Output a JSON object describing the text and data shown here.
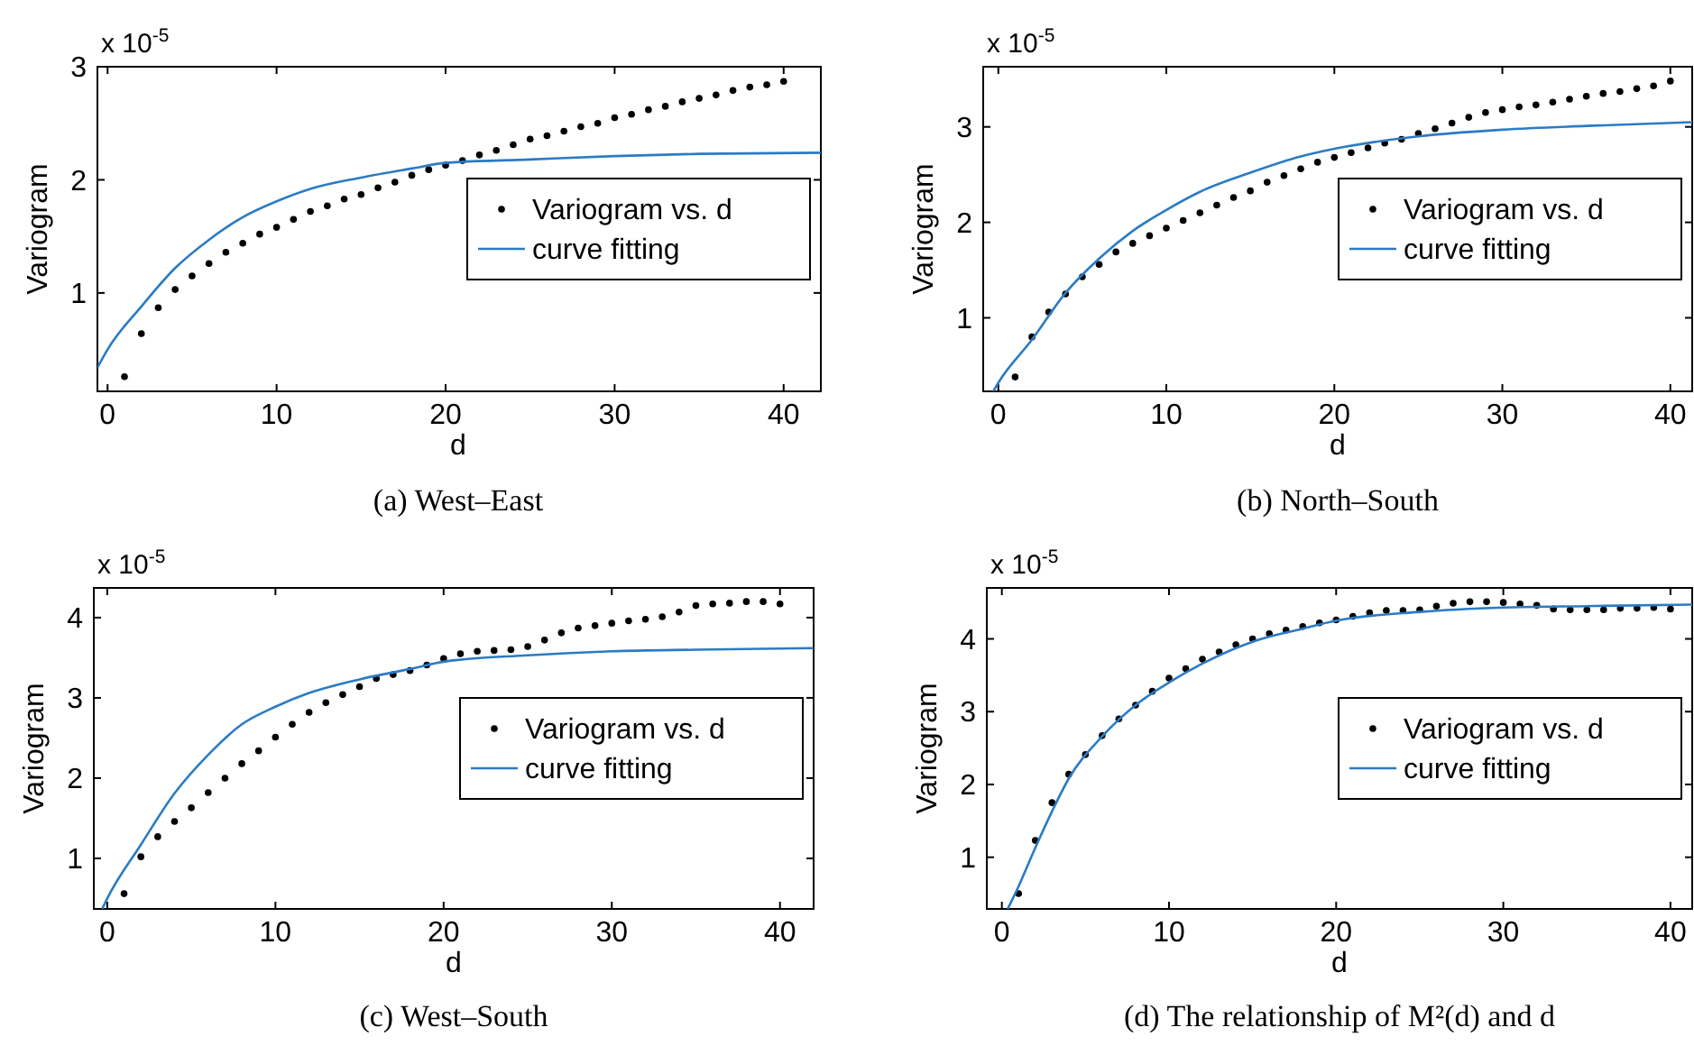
{
  "chart_data": [
    {
      "type": "scatter",
      "title": "(a) West–East",
      "xlabel": "d",
      "ylabel": "Variogram",
      "annotations": [
        "x 10$^{-5}$"
      ],
      "xlim": [
        -0.6,
        42.2
      ],
      "ylim": [
        0.13,
        3
      ],
      "xticks": [
        0,
        10,
        20,
        30,
        40
      ],
      "yticks": [
        1,
        2,
        3
      ],
      "legend": "right",
      "series": [
        {
          "name": "Variogram vs. d",
          "marker": "circle",
          "color": "#000000",
          "x": [
            1,
            2,
            3,
            4,
            5,
            6,
            7,
            8,
            9,
            10,
            11,
            12,
            13,
            14,
            15,
            16,
            17,
            18,
            19,
            20,
            21,
            22,
            23,
            24,
            25,
            26,
            27,
            28,
            29,
            30,
            31,
            32,
            33,
            34,
            35,
            36,
            37,
            38,
            39,
            40
          ],
          "values": [
            0.26,
            0.64,
            0.87,
            1.03,
            1.15,
            1.26,
            1.36,
            1.44,
            1.52,
            1.58,
            1.65,
            1.72,
            1.77,
            1.83,
            1.87,
            1.93,
            1.98,
            2.04,
            2.09,
            2.13,
            2.17,
            2.22,
            2.26,
            2.31,
            2.36,
            2.39,
            2.43,
            2.47,
            2.5,
            2.55,
            2.58,
            2.62,
            2.65,
            2.69,
            2.72,
            2.75,
            2.79,
            2.82,
            2.84,
            2.87
          ]
        },
        {
          "name": "curve fitting",
          "type": "line",
          "marker": "none",
          "color": "#2b7bc4",
          "x": [
            -0.6,
            0,
            2,
            4,
            6,
            8,
            10,
            12,
            15,
            18,
            20,
            25,
            30,
            35,
            42.2
          ],
          "values": [
            0.34,
            0.5,
            0.88,
            1.22,
            1.47,
            1.67,
            1.81,
            1.92,
            2.02,
            2.1,
            2.15,
            2.18,
            2.21,
            2.23,
            2.24
          ]
        }
      ]
    },
    {
      "type": "scatter",
      "title": "(b) North–South",
      "xlabel": "d",
      "ylabel": "Variogram",
      "annotations": [
        "x 10$^{-5}$"
      ],
      "xlim": [
        -0.9,
        41.3
      ],
      "ylim": [
        0.23,
        3.63
      ],
      "xticks": [
        0,
        10,
        20,
        30,
        40
      ],
      "yticks": [
        1,
        2,
        3
      ],
      "legend": "right",
      "series": [
        {
          "name": "Variogram vs. d",
          "marker": "circle",
          "color": "#000000",
          "x": [
            1,
            2,
            3,
            4,
            5,
            6,
            7,
            8,
            9,
            10,
            11,
            12,
            13,
            14,
            15,
            16,
            17,
            18,
            19,
            20,
            21,
            22,
            23,
            24,
            25,
            26,
            27,
            28,
            29,
            30,
            31,
            32,
            33,
            34,
            35,
            36,
            37,
            38,
            39,
            40
          ],
          "values": [
            0.38,
            0.8,
            1.06,
            1.25,
            1.43,
            1.56,
            1.69,
            1.78,
            1.86,
            1.94,
            2.02,
            2.1,
            2.18,
            2.26,
            2.33,
            2.42,
            2.49,
            2.56,
            2.63,
            2.68,
            2.73,
            2.78,
            2.83,
            2.87,
            2.93,
            2.98,
            3.04,
            3.1,
            3.15,
            3.18,
            3.21,
            3.23,
            3.26,
            3.29,
            3.32,
            3.35,
            3.37,
            3.4,
            3.43,
            3.48
          ]
        },
        {
          "name": "curve fitting",
          "type": "line",
          "marker": "none",
          "color": "#2b7bc4",
          "x": [
            -0.3,
            0,
            2,
            4,
            6,
            8,
            10,
            12,
            15,
            18,
            20,
            25,
            30,
            35,
            41.3
          ],
          "values": [
            0.23,
            0.32,
            0.77,
            1.26,
            1.62,
            1.91,
            2.13,
            2.32,
            2.52,
            2.69,
            2.77,
            2.9,
            2.97,
            3.01,
            3.05
          ]
        }
      ]
    },
    {
      "type": "scatter",
      "title": "(c) West–South",
      "xlabel": "d",
      "ylabel": "Variogram",
      "annotations": [
        "x 10$^{-5}$"
      ],
      "xlim": [
        -0.8,
        42
      ],
      "ylim": [
        0.37,
        4.37
      ],
      "xticks": [
        0,
        10,
        20,
        30,
        40
      ],
      "yticks": [
        1,
        2,
        3,
        4
      ],
      "legend": "right",
      "series": [
        {
          "name": "Variogram vs. d",
          "marker": "circle",
          "color": "#000000",
          "x": [
            1,
            2,
            3,
            4,
            5,
            6,
            7,
            8,
            9,
            10,
            11,
            12,
            13,
            14,
            15,
            16,
            17,
            18,
            19,
            20,
            21,
            22,
            23,
            24,
            25,
            26,
            27,
            28,
            29,
            30,
            31,
            32,
            33,
            34,
            35,
            36,
            37,
            38,
            39,
            40
          ],
          "values": [
            0.56,
            1.02,
            1.27,
            1.46,
            1.63,
            1.82,
            2.0,
            2.18,
            2.34,
            2.51,
            2.67,
            2.82,
            2.94,
            3.04,
            3.14,
            3.24,
            3.29,
            3.34,
            3.41,
            3.49,
            3.55,
            3.58,
            3.59,
            3.6,
            3.64,
            3.72,
            3.81,
            3.87,
            3.9,
            3.93,
            3.96,
            3.98,
            4.01,
            4.07,
            4.15,
            4.17,
            4.18,
            4.2,
            4.2,
            4.17
          ]
        },
        {
          "name": "curve fitting",
          "type": "line",
          "marker": "none",
          "color": "#2b7bc4",
          "x": [
            -0.3,
            0,
            2,
            4,
            6,
            8,
            10,
            12,
            15,
            18,
            20,
            25,
            30,
            35,
            42
          ],
          "values": [
            0.37,
            0.5,
            1.17,
            1.81,
            2.29,
            2.67,
            2.89,
            3.06,
            3.23,
            3.36,
            3.45,
            3.53,
            3.58,
            3.6,
            3.62
          ]
        }
      ]
    },
    {
      "type": "scatter",
      "title": "(d) The relationship of M²(d) and d",
      "xlabel": "d",
      "ylabel": "Variogram",
      "annotations": [
        "x 10$^{-5}$"
      ],
      "xlim": [
        -0.9,
        41.3
      ],
      "ylim": [
        0.29,
        4.7
      ],
      "xticks": [
        0,
        10,
        20,
        30,
        40
      ],
      "yticks": [
        1,
        2,
        3,
        4
      ],
      "legend": "right",
      "series": [
        {
          "name": "Variogram vs. d",
          "marker": "circle",
          "color": "#000000",
          "x": [
            1,
            2,
            3,
            4,
            5,
            6,
            7,
            8,
            9,
            10,
            11,
            12,
            13,
            14,
            15,
            16,
            17,
            18,
            19,
            20,
            21,
            22,
            23,
            24,
            25,
            26,
            27,
            28,
            29,
            30,
            31,
            32,
            33,
            34,
            35,
            36,
            37,
            38,
            39,
            40
          ],
          "values": [
            0.5,
            1.23,
            1.75,
            2.14,
            2.41,
            2.67,
            2.9,
            3.09,
            3.28,
            3.46,
            3.59,
            3.72,
            3.82,
            3.92,
            4.0,
            4.07,
            4.12,
            4.17,
            4.22,
            4.26,
            4.31,
            4.36,
            4.39,
            4.39,
            4.4,
            4.45,
            4.49,
            4.51,
            4.51,
            4.5,
            4.48,
            4.46,
            4.41,
            4.4,
            4.4,
            4.4,
            4.42,
            4.42,
            4.43,
            4.41
          ]
        },
        {
          "name": "curve fitting",
          "type": "line",
          "marker": "none",
          "color": "#2b7bc4",
          "x": [
            0.35,
            1,
            2,
            3,
            4,
            6,
            8,
            10,
            12,
            15,
            18,
            20,
            25,
            30,
            35,
            41.3
          ],
          "values": [
            0.29,
            0.6,
            1.13,
            1.63,
            2.08,
            2.66,
            3.09,
            3.4,
            3.66,
            3.96,
            4.14,
            4.25,
            4.37,
            4.43,
            4.45,
            4.47
          ]
        }
      ]
    }
  ]
}
